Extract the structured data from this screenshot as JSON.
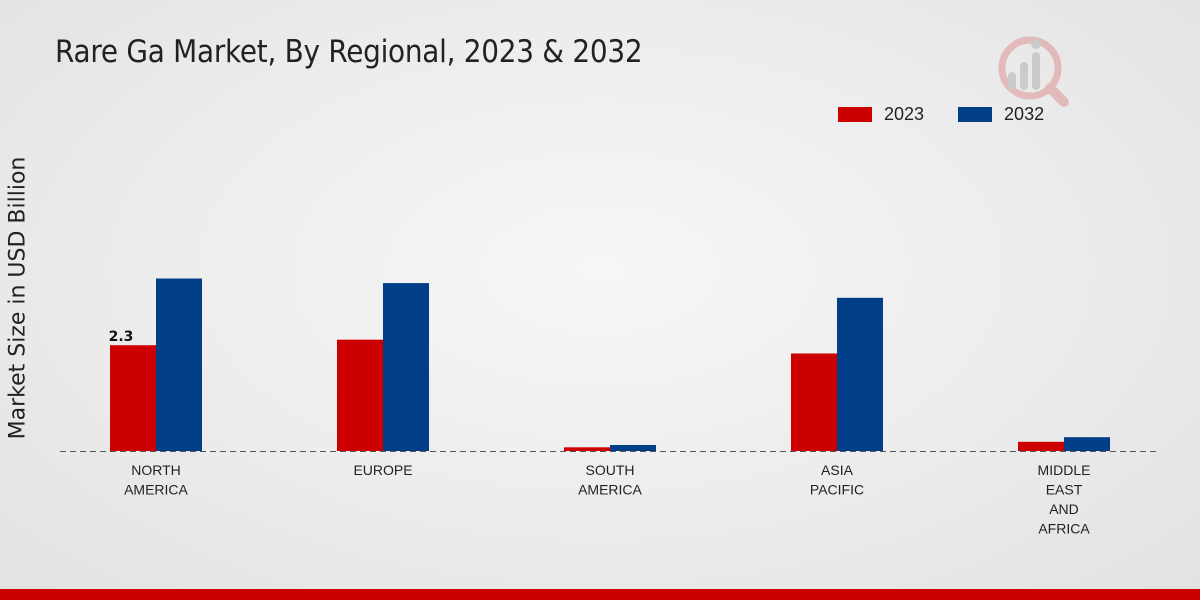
{
  "chart_data": {
    "type": "bar",
    "title": "Rare Ga Market, By Regional, 2023 & 2032",
    "xlabel": "",
    "ylabel": "Market Size in USD Billion",
    "categories": [
      [
        "NORTH",
        "AMERICA"
      ],
      [
        "EUROPE"
      ],
      [
        "SOUTH",
        "AMERICA"
      ],
      [
        "ASIA",
        "PACIFIC"
      ],
      [
        "MIDDLE",
        "EAST",
        "AND",
        "AFRICA"
      ]
    ],
    "series": [
      {
        "name": "2023",
        "color": "#cc0000",
        "values": [
          2.3,
          2.42,
          0.08,
          2.12,
          0.2
        ]
      },
      {
        "name": "2032",
        "color": "#003f87",
        "values": [
          3.75,
          3.65,
          0.13,
          3.33,
          0.3
        ]
      }
    ],
    "data_labels": [
      {
        "series": 0,
        "index": 0,
        "text": "2.3"
      }
    ],
    "ylim": [
      0,
      8.5
    ],
    "grid": false,
    "legend_position": "top-right"
  },
  "legend": {
    "items": [
      {
        "label": "2023",
        "color": "#cc0000"
      },
      {
        "label": "2032",
        "color": "#003f87"
      }
    ]
  },
  "branding": {
    "logo_icon": "market-research-logo-icon",
    "accent_bar_color": "#cc0000"
  }
}
